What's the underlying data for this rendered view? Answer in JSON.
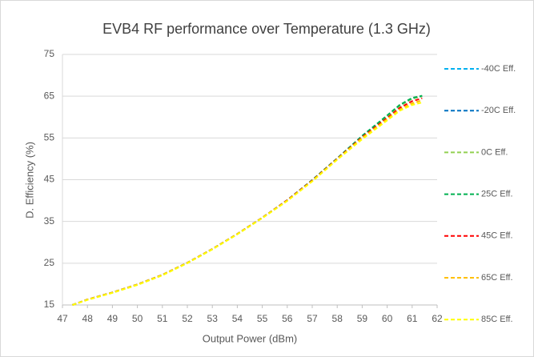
{
  "chart_data": {
    "type": "line",
    "title": "EVB4 RF performance over Temperature (1.3 GHz)",
    "x_label": "Output Power (dBm)",
    "y_label": "D. Efficiency (%)",
    "x": [
      47.4,
      48,
      49,
      50,
      51,
      52,
      53,
      54,
      55,
      56,
      57,
      58,
      59,
      60,
      60.5,
      61,
      61.4
    ],
    "series": [
      {
        "name": "-40C Eff.",
        "color": "#00b0f0",
        "values": [
          15,
          16.3,
          18,
          19.9,
          22.2,
          25.1,
          28.4,
          32,
          35.9,
          40.1,
          44.9,
          50.1,
          55.5,
          60.3,
          62.8,
          64.5,
          65
        ]
      },
      {
        "name": "-20C Eff.",
        "color": "#0070c0",
        "values": [
          15,
          16.3,
          18,
          19.9,
          22.2,
          25.1,
          28.4,
          32,
          35.9,
          40.1,
          44.9,
          50.1,
          55.4,
          60.2,
          62.7,
          64.4,
          65
        ]
      },
      {
        "name": "0C Eff.",
        "color": "#92d050",
        "values": [
          15,
          16.3,
          18,
          19.9,
          22.2,
          25.1,
          28.4,
          32,
          35.9,
          40.1,
          44.9,
          50.1,
          55.4,
          60.2,
          62.7,
          64.4,
          65
        ]
      },
      {
        "name": "25C Eff.",
        "color": "#00b050",
        "values": [
          15,
          16.3,
          18,
          19.9,
          22.2,
          25.1,
          28.4,
          32,
          35.9,
          40.1,
          44.9,
          50.1,
          55.5,
          60.4,
          62.9,
          64.6,
          65.1
        ]
      },
      {
        "name": "45C Eff.",
        "color": "#ff0000",
        "values": [
          15,
          16.3,
          18,
          19.9,
          22.2,
          25.1,
          28.4,
          32,
          35.9,
          40.1,
          44.8,
          50,
          55.2,
          59.8,
          62.2,
          63.8,
          64.5
        ]
      },
      {
        "name": "65C Eff.",
        "color": "#ffc000",
        "values": [
          15,
          16.3,
          18,
          19.9,
          22.2,
          25.1,
          28.4,
          32,
          35.9,
          40,
          44.7,
          49.9,
          55,
          59.5,
          61.8,
          63.3,
          64
        ]
      },
      {
        "name": "85C Eff.",
        "color": "#ffff00",
        "values": [
          15,
          16.2,
          17.9,
          19.8,
          22.1,
          25,
          28.3,
          31.9,
          35.8,
          39.9,
          44.6,
          49.8,
          54.7,
          59.2,
          61.5,
          62.9,
          63.5
        ]
      }
    ],
    "xlim": [
      47,
      62
    ],
    "xticks": [
      47,
      48,
      49,
      50,
      51,
      52,
      53,
      54,
      55,
      56,
      57,
      58,
      59,
      60,
      61,
      62
    ],
    "ylim": [
      15,
      75
    ],
    "yticks": [
      15,
      25,
      35,
      45,
      55,
      65,
      75
    ],
    "grid": true,
    "legend": "right"
  }
}
